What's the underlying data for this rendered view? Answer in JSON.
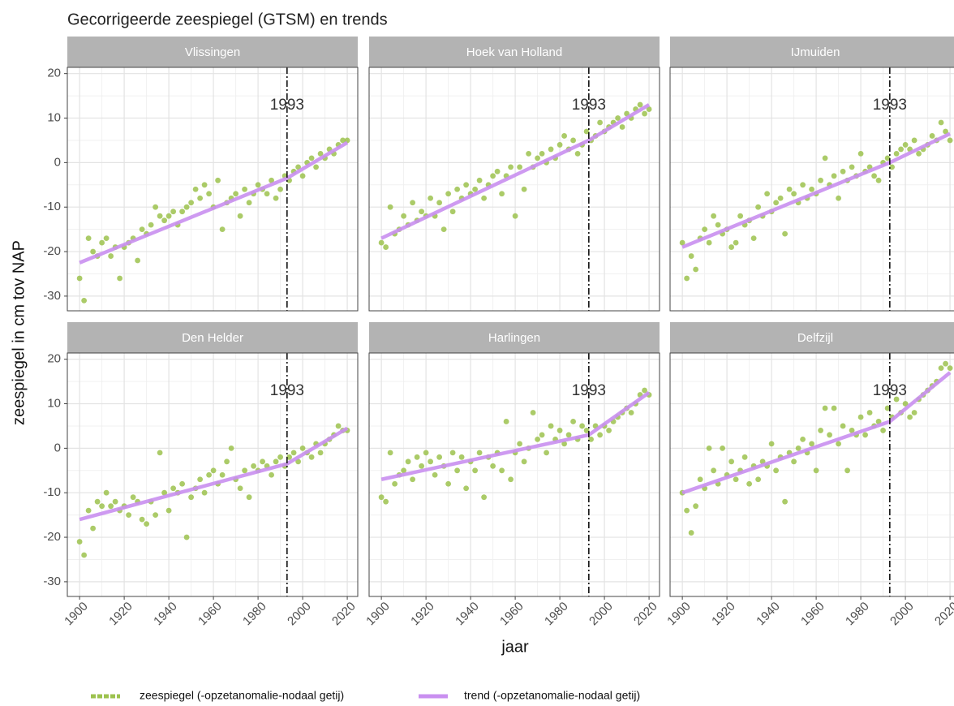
{
  "title": "Gecorrigeerde zeespiegel (GTSM) en trends",
  "y_label": "zeespiegel in cm tov NAP",
  "x_label": "jaar",
  "legend": [
    {
      "name": "zeespiegel (-opzetanomalie-nodaal getij)",
      "color": "#9cc24e"
    },
    {
      "name": "trend (-opzetanomalie-nodaal getij)",
      "color": "#c98ff0"
    }
  ],
  "chart_data": [
    {
      "type": "scatter",
      "title": "Vlissingen",
      "grid": true,
      "vline": 1993,
      "xlim": [
        1894.5,
        2024.7
      ],
      "ylim": [
        -33.3,
        21.4
      ],
      "xticks": [
        1900,
        1920,
        1940,
        1960,
        1980,
        2000,
        2020
      ],
      "yticks": [
        -30,
        -20,
        -10,
        0,
        10,
        20
      ],
      "x": [
        1900,
        1902,
        1904,
        1906,
        1908,
        1910,
        1912,
        1914,
        1916,
        1918,
        1920,
        1922,
        1924,
        1926,
        1928,
        1930,
        1932,
        1934,
        1936,
        1938,
        1940,
        1942,
        1944,
        1946,
        1948,
        1950,
        1952,
        1954,
        1956,
        1958,
        1960,
        1962,
        1964,
        1966,
        1968,
        1970,
        1972,
        1974,
        1976,
        1978,
        1980,
        1982,
        1984,
        1986,
        1988,
        1990,
        1992,
        1994,
        1996,
        1998,
        2000,
        2002,
        2004,
        2006,
        2008,
        2010,
        2012,
        2014,
        2016,
        2018,
        2020
      ],
      "values": [
        -26,
        -31,
        -17,
        -20,
        -21,
        -18,
        -17,
        -21,
        -19,
        -26,
        -19,
        -18,
        -17,
        -22,
        -15,
        -16,
        -14,
        -10,
        -12,
        -13,
        -12,
        -11,
        -14,
        -11,
        -10,
        -9,
        -6,
        -8,
        -5,
        -7,
        -10,
        -4,
        -15,
        -9,
        -8,
        -7,
        -12,
        -6,
        -9,
        -7,
        -5,
        -6,
        -7,
        -4,
        -8,
        -6,
        -3,
        -4,
        -2,
        -1,
        -3,
        0,
        1,
        -1,
        2,
        1,
        3,
        2,
        4,
        5,
        5
      ],
      "trend_x": [
        1900,
        1993,
        2020
      ],
      "trend_values": [
        -22.5,
        -3.5,
        4.5
      ]
    },
    {
      "type": "scatter",
      "title": "Hoek van Holland",
      "grid": true,
      "vline": 1993,
      "xlim": [
        1894.5,
        2024.7
      ],
      "ylim": [
        -33.3,
        21.4
      ],
      "xticks": [
        1900,
        1920,
        1940,
        1960,
        1980,
        2000,
        2020
      ],
      "yticks": [
        -30,
        -20,
        -10,
        0,
        10,
        20
      ],
      "x": [
        1900,
        1902,
        1904,
        1906,
        1908,
        1910,
        1912,
        1914,
        1916,
        1918,
        1920,
        1922,
        1924,
        1926,
        1928,
        1930,
        1932,
        1934,
        1936,
        1938,
        1940,
        1942,
        1944,
        1946,
        1948,
        1950,
        1952,
        1954,
        1956,
        1958,
        1960,
        1962,
        1964,
        1966,
        1968,
        1970,
        1972,
        1974,
        1976,
        1978,
        1980,
        1982,
        1984,
        1986,
        1988,
        1990,
        1992,
        1994,
        1996,
        1998,
        2000,
        2002,
        2004,
        2006,
        2008,
        2010,
        2012,
        2014,
        2016,
        2018,
        2020
      ],
      "values": [
        -18,
        -19,
        -10,
        -16,
        -15,
        -12,
        -14,
        -9,
        -13,
        -11,
        -12,
        -8,
        -12,
        -9,
        -15,
        -7,
        -11,
        -6,
        -8,
        -5,
        -7,
        -6,
        -4,
        -8,
        -5,
        -3,
        -2,
        -7,
        -3,
        -1,
        -12,
        -1,
        -6,
        2,
        -1,
        1,
        2,
        0,
        3,
        1,
        4,
        6,
        3,
        5,
        2,
        4,
        7,
        5,
        6,
        9,
        7,
        8,
        9,
        10,
        8,
        11,
        10,
        12,
        13,
        11,
        12
      ],
      "trend_x": [
        1900,
        1993,
        2020
      ],
      "trend_values": [
        -17,
        5,
        13
      ]
    },
    {
      "type": "scatter",
      "title": "IJmuiden",
      "grid": true,
      "vline": 1993,
      "xlim": [
        1894.5,
        2024.7
      ],
      "ylim": [
        -33.3,
        21.4
      ],
      "xticks": [
        1900,
        1920,
        1940,
        1960,
        1980,
        2000,
        2020
      ],
      "yticks": [
        -30,
        -20,
        -10,
        0,
        10,
        20
      ],
      "x": [
        1900,
        1902,
        1904,
        1906,
        1908,
        1910,
        1912,
        1914,
        1916,
        1918,
        1920,
        1922,
        1924,
        1926,
        1928,
        1930,
        1932,
        1934,
        1936,
        1938,
        1940,
        1942,
        1944,
        1946,
        1948,
        1950,
        1952,
        1954,
        1956,
        1958,
        1960,
        1962,
        1964,
        1966,
        1968,
        1970,
        1972,
        1974,
        1976,
        1978,
        1980,
        1982,
        1984,
        1986,
        1988,
        1990,
        1992,
        1994,
        1996,
        1998,
        2000,
        2002,
        2004,
        2006,
        2008,
        2010,
        2012,
        2014,
        2016,
        2018,
        2020
      ],
      "values": [
        -18,
        -26,
        -21,
        -24,
        -17,
        -15,
        -18,
        -12,
        -14,
        -16,
        -15,
        -19,
        -18,
        -12,
        -14,
        -13,
        -17,
        -10,
        -12,
        -7,
        -11,
        -9,
        -8,
        -16,
        -6,
        -7,
        -9,
        -5,
        -8,
        -6,
        -7,
        -4,
        1,
        -5,
        -3,
        -8,
        -2,
        -4,
        -1,
        -3,
        2,
        -2,
        -1,
        -3,
        -4,
        0,
        1,
        -1,
        2,
        3,
        4,
        3,
        5,
        2,
        3,
        4,
        6,
        5,
        9,
        7,
        5
      ],
      "trend_x": [
        1900,
        1993,
        2020
      ],
      "trend_values": [
        -19,
        0,
        6.5
      ]
    },
    {
      "type": "scatter",
      "title": "Den Helder",
      "grid": true,
      "vline": 1993,
      "xlim": [
        1894.5,
        2024.7
      ],
      "ylim": [
        -33.3,
        21.4
      ],
      "xticks": [
        1900,
        1920,
        1940,
        1960,
        1980,
        2000,
        2020
      ],
      "yticks": [
        -30,
        -20,
        -10,
        0,
        10,
        20
      ],
      "x": [
        1900,
        1902,
        1904,
        1906,
        1908,
        1910,
        1912,
        1914,
        1916,
        1918,
        1920,
        1922,
        1924,
        1926,
        1928,
        1930,
        1932,
        1934,
        1936,
        1938,
        1940,
        1942,
        1944,
        1946,
        1948,
        1950,
        1952,
        1954,
        1956,
        1958,
        1960,
        1962,
        1964,
        1966,
        1968,
        1970,
        1972,
        1974,
        1976,
        1978,
        1980,
        1982,
        1984,
        1986,
        1988,
        1990,
        1992,
        1994,
        1996,
        1998,
        2000,
        2002,
        2004,
        2006,
        2008,
        2010,
        2012,
        2014,
        2016,
        2018,
        2020
      ],
      "values": [
        -21,
        -24,
        -14,
        -18,
        -12,
        -13,
        -10,
        -13,
        -12,
        -14,
        -13,
        -15,
        -11,
        -12,
        -16,
        -17,
        -12,
        -15,
        -1,
        -10,
        -14,
        -9,
        -10,
        -8,
        -20,
        -11,
        -9,
        -7,
        -10,
        -6,
        -5,
        -8,
        -6,
        -3,
        0,
        -7,
        -9,
        -5,
        -11,
        -4,
        -5,
        -3,
        -4,
        -6,
        -3,
        -2,
        -4,
        -2,
        -1,
        -3,
        0,
        -1,
        -2,
        1,
        -1,
        1,
        2,
        3,
        5,
        4,
        4
      ],
      "trend_x": [
        1900,
        1993,
        2020
      ],
      "trend_values": [
        -16,
        -3.5,
        4.5
      ]
    },
    {
      "type": "scatter",
      "title": "Harlingen",
      "grid": true,
      "vline": 1993,
      "xlim": [
        1894.5,
        2024.7
      ],
      "ylim": [
        -33.3,
        21.4
      ],
      "xticks": [
        1900,
        1920,
        1940,
        1960,
        1980,
        2000,
        2020
      ],
      "yticks": [
        -30,
        -20,
        -10,
        0,
        10,
        20
      ],
      "x": [
        1900,
        1902,
        1904,
        1906,
        1908,
        1910,
        1912,
        1914,
        1916,
        1918,
        1920,
        1922,
        1924,
        1926,
        1928,
        1930,
        1932,
        1934,
        1936,
        1938,
        1940,
        1942,
        1944,
        1946,
        1948,
        1950,
        1952,
        1954,
        1956,
        1958,
        1960,
        1962,
        1964,
        1966,
        1968,
        1970,
        1972,
        1974,
        1976,
        1978,
        1980,
        1982,
        1984,
        1986,
        1988,
        1990,
        1992,
        1994,
        1996,
        1998,
        2000,
        2002,
        2004,
        2006,
        2008,
        2010,
        2012,
        2014,
        2016,
        2018,
        2020
      ],
      "values": [
        -11,
        -12,
        -1,
        -8,
        -6,
        -5,
        -3,
        -7,
        -2,
        -4,
        -1,
        -3,
        -6,
        -2,
        -4,
        -8,
        -1,
        -5,
        -2,
        -9,
        -3,
        -5,
        -1,
        -11,
        -2,
        -4,
        -1,
        -5,
        6,
        -7,
        -1,
        1,
        -3,
        0,
        8,
        2,
        3,
        -1,
        5,
        2,
        4,
        1,
        3,
        6,
        2,
        5,
        4,
        2,
        5,
        3,
        5,
        4,
        6,
        7,
        8,
        9,
        8,
        10,
        12,
        13,
        12
      ],
      "trend_x": [
        1900,
        1993,
        2020
      ],
      "trend_values": [
        -7,
        3,
        12.5
      ]
    },
    {
      "type": "scatter",
      "title": "Delfzijl",
      "grid": true,
      "vline": 1993,
      "xlim": [
        1894.5,
        2024.7
      ],
      "ylim": [
        -33.3,
        21.4
      ],
      "xticks": [
        1900,
        1920,
        1940,
        1960,
        1980,
        2000,
        2020
      ],
      "yticks": [
        -30,
        -20,
        -10,
        0,
        10,
        20
      ],
      "x": [
        1900,
        1902,
        1904,
        1906,
        1908,
        1910,
        1912,
        1914,
        1916,
        1918,
        1920,
        1922,
        1924,
        1926,
        1928,
        1930,
        1932,
        1934,
        1936,
        1938,
        1940,
        1942,
        1944,
        1946,
        1948,
        1950,
        1952,
        1954,
        1956,
        1958,
        1960,
        1962,
        1964,
        1966,
        1968,
        1970,
        1972,
        1974,
        1976,
        1978,
        1980,
        1982,
        1984,
        1986,
        1988,
        1990,
        1992,
        1994,
        1996,
        1998,
        2000,
        2002,
        2004,
        2006,
        2008,
        2010,
        2012,
        2014,
        2016,
        2018,
        2020
      ],
      "values": [
        -10,
        -14,
        -19,
        -13,
        -7,
        -9,
        0,
        -5,
        -8,
        0,
        -6,
        -3,
        -7,
        -5,
        -2,
        -8,
        -4,
        -7,
        -3,
        -4,
        1,
        -5,
        -2,
        -12,
        -1,
        -3,
        0,
        2,
        -1,
        1,
        -5,
        4,
        9,
        3,
        9,
        1,
        5,
        -5,
        4,
        3,
        7,
        3,
        8,
        5,
        6,
        4,
        9,
        7,
        11,
        8,
        10,
        7,
        8,
        11,
        12,
        13,
        14,
        15,
        18,
        19,
        18
      ],
      "trend_x": [
        1900,
        1993,
        2020
      ],
      "trend_values": [
        -10,
        6,
        17
      ]
    }
  ]
}
